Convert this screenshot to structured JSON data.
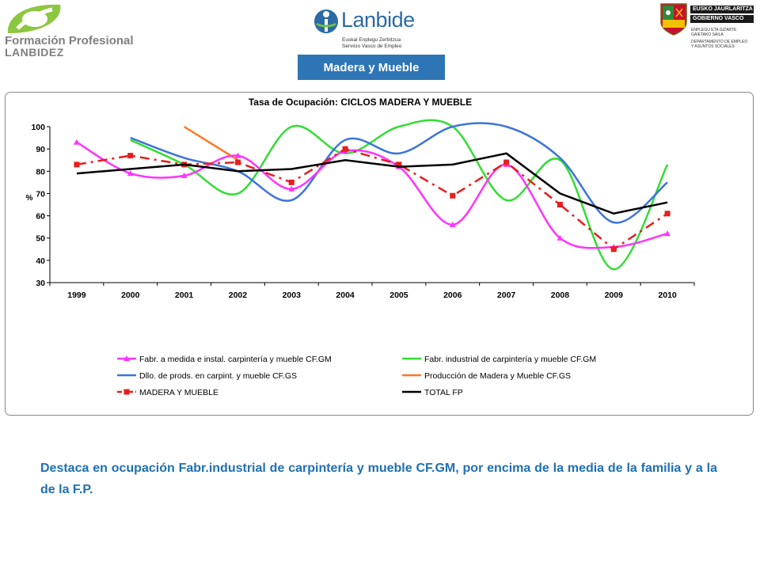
{
  "header": {
    "left_logo": {
      "line1": "Formación Profesional",
      "line2": "LANBIDEZ"
    },
    "center_logo": {
      "name": "Lanbide",
      "sub1": "Euskal Enplegu Zerbitzua",
      "sub2": "Servicio Vasco de Empleo"
    },
    "right_logo": {
      "bar1": "EUSKO JAURLARITZA",
      "bar2": "GOBIERNO VASCO",
      "dept1": "ENPLEGU ETA GIZARTE",
      "dept2": "GAIETAKO SAILA",
      "dept3": "DEPARTAMENTO DE EMPLEO",
      "dept4": "Y ASUNTOS SOCIALES"
    },
    "section_tag": "Madera y Mueble"
  },
  "chart_data": {
    "type": "line",
    "title": "Tasa de Ocupación: CICLOS MADERA Y MUEBLE",
    "ylabel": "%",
    "xlabel": "",
    "ylim": [
      30,
      100
    ],
    "yticks": [
      30,
      40,
      50,
      60,
      70,
      80,
      90,
      100
    ],
    "categories": [
      "1999",
      "2000",
      "2001",
      "2002",
      "2003",
      "2004",
      "2005",
      "2006",
      "2007",
      "2008",
      "2009",
      "2010"
    ],
    "series": [
      {
        "name": "Fabr. a medida e instal. carpintería y mueble CF.GM",
        "color": "#ff33ff",
        "marker": "triangle",
        "dash": "solid",
        "values": [
          93,
          79,
          78,
          87,
          72,
          89,
          82,
          56,
          83,
          50,
          46,
          52
        ]
      },
      {
        "name": "Fabr. industrial de carpintería y mueble CF.GM",
        "color": "#33dd33",
        "marker": "none",
        "dash": "solid",
        "values": [
          null,
          94,
          83,
          70,
          100,
          88,
          100,
          100,
          67,
          85,
          36,
          83
        ]
      },
      {
        "name": "Dllo. de prods. en carpint. y mueble CF.GS",
        "color": "#3d74d9",
        "marker": "none",
        "dash": "solid",
        "values": [
          null,
          95,
          86,
          80,
          67,
          94,
          88,
          100,
          100,
          86,
          57,
          75
        ]
      },
      {
        "name": "Producción de Madera y Mueble CF.GS",
        "color": "#ff7722",
        "marker": "none",
        "dash": "solid",
        "values": [
          null,
          null,
          100,
          85,
          null,
          null,
          null,
          null,
          null,
          null,
          null,
          null
        ]
      },
      {
        "name": "MADERA Y MUEBLE",
        "color": "#e61e1e",
        "marker": "square",
        "dash": "dashdot",
        "values": [
          83,
          87,
          83,
          84,
          75,
          90,
          83,
          69,
          84,
          65,
          45,
          61
        ]
      },
      {
        "name": "TOTAL FP",
        "color": "#000000",
        "marker": "none",
        "dash": "solid",
        "values": [
          79,
          81,
          83,
          80,
          81,
          85,
          82,
          83,
          88,
          70,
          61,
          66
        ]
      }
    ],
    "legend_position": "bottom"
  },
  "summary": "Destaca en ocupación Fabr.industrial de carpintería y mueble CF.GM, por encima de la media de la familia y a la de la F.P."
}
